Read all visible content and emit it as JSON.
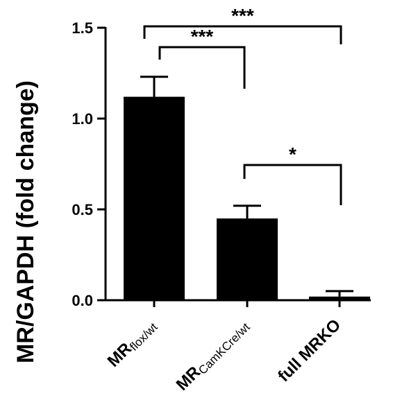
{
  "chart_data": {
    "type": "bar",
    "ylabel": "MR/GAPDH (fold change)",
    "ylim": [
      0,
      1.5
    ],
    "yticks": [
      "0.0",
      "0.5",
      "1.0",
      "1.5"
    ],
    "ytick_values": [
      0,
      0.5,
      1.0,
      1.5
    ],
    "categories": [
      {
        "main": "MR",
        "sub": "flox/wt"
      },
      {
        "main": "MR",
        "sub": "CamKCre/wt"
      },
      {
        "main": "full MRKO",
        "sub": ""
      }
    ],
    "values": [
      1.12,
      0.45,
      0.02
    ],
    "errors": [
      0.11,
      0.07,
      0.03
    ],
    "significance": [
      {
        "from": 0,
        "to": 2,
        "label": "***"
      },
      {
        "from": 0,
        "to": 1,
        "label": "***"
      },
      {
        "from": 1,
        "to": 2,
        "label": "*"
      }
    ]
  }
}
